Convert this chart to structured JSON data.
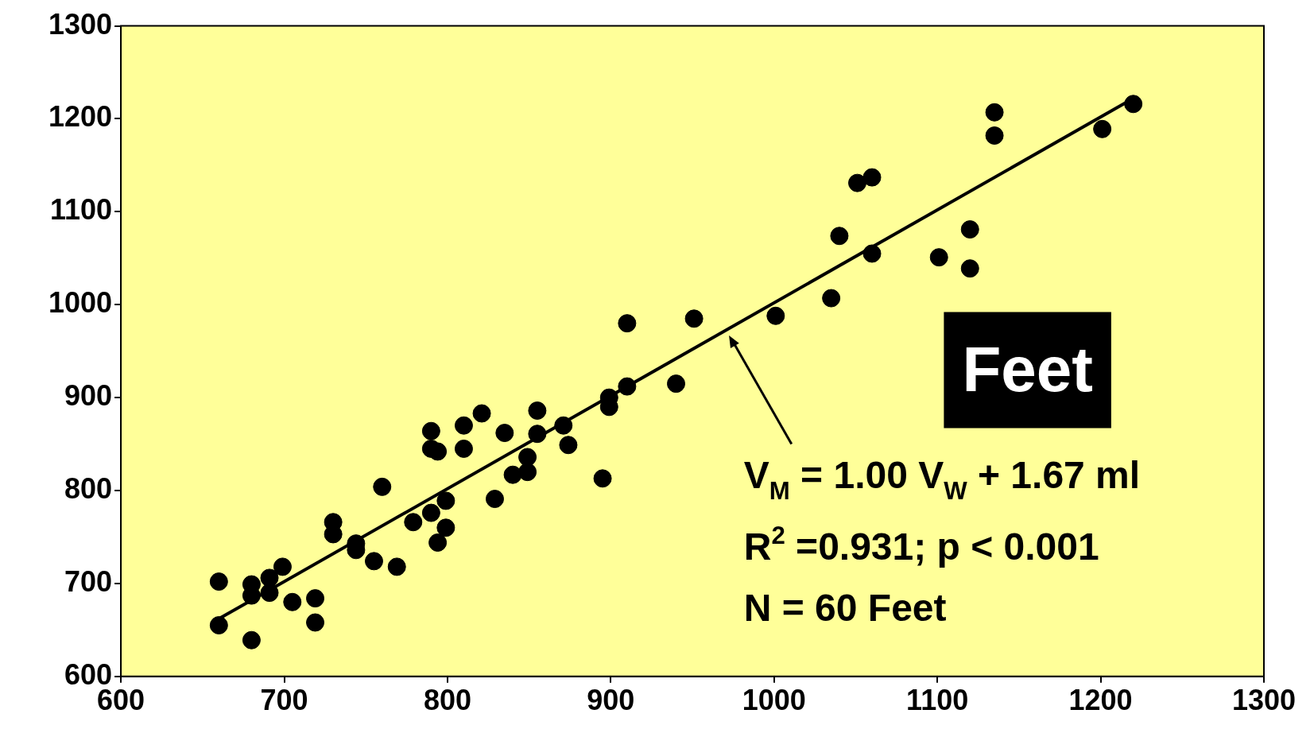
{
  "chart_data": {
    "type": "scatter",
    "xlim": [
      600,
      1300
    ],
    "ylim": [
      600,
      1300
    ],
    "xticks": [
      600,
      700,
      800,
      900,
      1000,
      1100,
      1200,
      1300
    ],
    "yticks": [
      600,
      700,
      800,
      900,
      1000,
      1100,
      1200,
      1300
    ],
    "grid": false,
    "legend": false,
    "marker": "circle",
    "series": [
      {
        "type": "scatter",
        "color": "#000000",
        "x": [
          660,
          660,
          680,
          680,
          680,
          691,
          691,
          699,
          705,
          719,
          719,
          730,
          730,
          744,
          744,
          755,
          760,
          769,
          779,
          790,
          790,
          794,
          790,
          794,
          799,
          799,
          810,
          810,
          821,
          829,
          835,
          840,
          849,
          849,
          855,
          855,
          871,
          874,
          895,
          899,
          899,
          910,
          910,
          940,
          951,
          1001,
          1035,
          1040,
          1051,
          1060,
          1060,
          1101,
          1120,
          1120,
          1135,
          1135,
          1201,
          1220
        ],
        "values": [
          702,
          655,
          639,
          699,
          687,
          706,
          690,
          718,
          680,
          684,
          658,
          766,
          753,
          743,
          736,
          724,
          804,
          718,
          766,
          864,
          845,
          842,
          776,
          744,
          789,
          760,
          870,
          845,
          883,
          791,
          862,
          817,
          836,
          820,
          886,
          861,
          870,
          849,
          813,
          900,
          890,
          980,
          912,
          915,
          985,
          988,
          1007,
          1074,
          1131,
          1137,
          1055,
          1051,
          1081,
          1039,
          1207,
          1182,
          1189,
          1216
        ]
      },
      {
        "type": "line",
        "color": "#000000",
        "line_style": "solid",
        "marker": "none",
        "x": [
          660,
          1220
        ],
        "values": [
          662,
          1222
        ]
      }
    ],
    "annotations": [
      "V$_{M}$ = 1.00 V$_{W}$ + 1.67 ml",
      "R$^{2}$ =0.931; p < 0.001",
      "N = 60 Feet",
      "Feet"
    ]
  }
}
